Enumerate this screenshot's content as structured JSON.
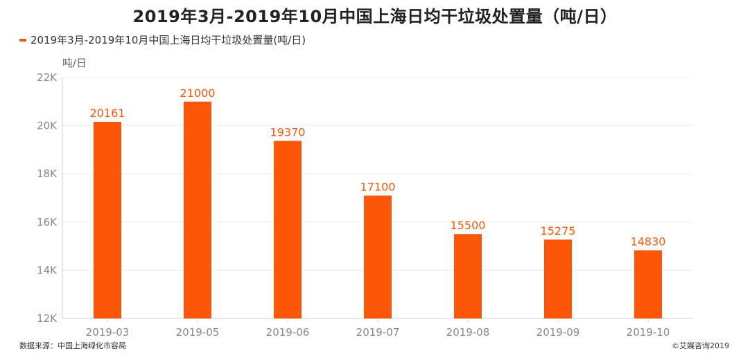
{
  "title": "2019年3月-2019年10月中国上海日均干垃圾处置量（吨/日）",
  "legend_label": "2019年3月-2019年10月中国上海日均干垃圾处置量(吨/日)",
  "unit_label": "吨/日",
  "source": "数据来源：中国上海绿化市容局",
  "copyright": "©艾媒咨询2019",
  "colors": {
    "bar": "#fc5606",
    "label": "#fc5606",
    "grid": "#ebebeb",
    "axis": "#cccccc"
  },
  "chart_data": {
    "type": "bar",
    "categories": [
      "2019-03",
      "2019-05",
      "2019-06",
      "2019-07",
      "2019-08",
      "2019-09",
      "2019-10"
    ],
    "series": [
      {
        "name": "2019年3月-2019年10月中国上海日均干垃圾处置量(吨/日)",
        "values": [
          20161,
          21000,
          19370,
          17100,
          15500,
          15275,
          14830
        ]
      }
    ],
    "ylabel": "吨/日",
    "ylim": [
      12000,
      22000
    ],
    "yticks": [
      12000,
      14000,
      16000,
      18000,
      20000,
      22000
    ],
    "ytick_labels": [
      "12K",
      "14K",
      "16K",
      "18K",
      "20K",
      "22K"
    ],
    "grid": true,
    "legend_position": "top-left"
  }
}
